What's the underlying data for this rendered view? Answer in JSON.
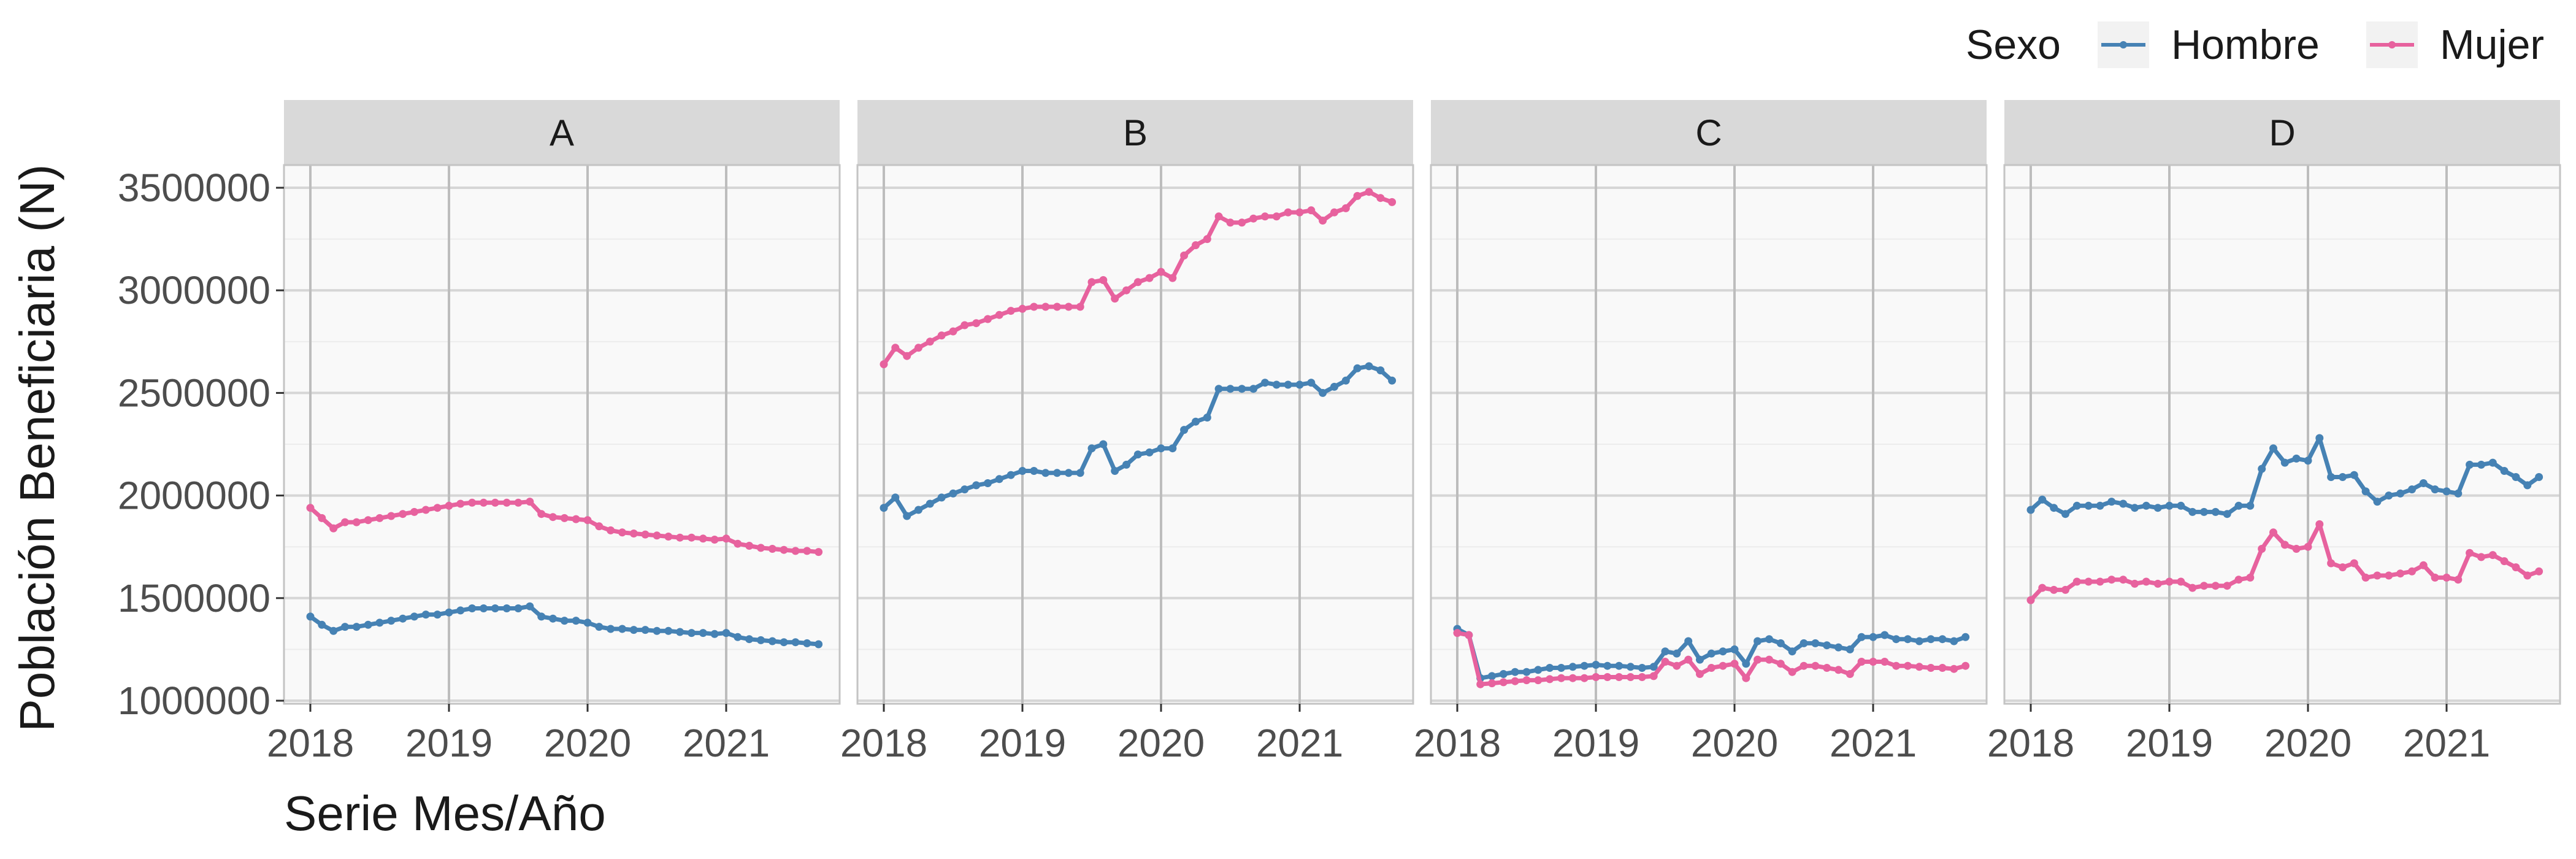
{
  "chart_data": {
    "type": "line",
    "title": "",
    "xlabel": "Serie Mes/Año",
    "ylabel": "Población Beneficiaria (N)",
    "ylim": [
      1000000,
      3500000
    ],
    "yticks": [
      1000000,
      1500000,
      2000000,
      2500000,
      3000000,
      3500000
    ],
    "ytick_labels": [
      "1000000",
      "1500000",
      "2000000",
      "2500000",
      "3000000",
      "3500000"
    ],
    "xlim": [
      2017.9,
      2021.75
    ],
    "xticks": [
      2018,
      2019,
      2020,
      2021
    ],
    "xtick_labels": [
      "2018",
      "2019",
      "2020",
      "2021"
    ],
    "grid": true,
    "facet_variable": "",
    "legend": {
      "title": "Sexo",
      "position": "top-right",
      "entries": [
        {
          "name": "Hombre",
          "color": "#4682B4"
        },
        {
          "name": "Mujer",
          "color": "#E7629E"
        }
      ]
    },
    "x_start": 2018.0,
    "x_step": 0.08333,
    "panels": [
      {
        "label": "A",
        "series": [
          {
            "name": "Hombre",
            "values": [
              1410000,
              1370000,
              1340000,
              1360000,
              1360000,
              1370000,
              1380000,
              1390000,
              1400000,
              1410000,
              1420000,
              1420000,
              1430000,
              1440000,
              1450000,
              1450000,
              1450000,
              1450000,
              1450000,
              1460000,
              1410000,
              1400000,
              1390000,
              1390000,
              1380000,
              1360000,
              1350000,
              1350000,
              1345000,
              1345000,
              1340000,
              1340000,
              1335000,
              1330000,
              1330000,
              1325000,
              1330000,
              1310000,
              1300000,
              1295000,
              1290000,
              1285000,
              1285000,
              1280000,
              1275000
            ]
          },
          {
            "name": "Mujer",
            "values": [
              1940000,
              1890000,
              1840000,
              1870000,
              1870000,
              1880000,
              1890000,
              1900000,
              1910000,
              1920000,
              1930000,
              1940000,
              1950000,
              1960000,
              1965000,
              1965000,
              1965000,
              1965000,
              1965000,
              1970000,
              1910000,
              1895000,
              1890000,
              1885000,
              1880000,
              1850000,
              1830000,
              1820000,
              1815000,
              1810000,
              1805000,
              1800000,
              1795000,
              1795000,
              1790000,
              1785000,
              1790000,
              1765000,
              1755000,
              1745000,
              1740000,
              1735000,
              1730000,
              1730000,
              1725000
            ]
          }
        ]
      },
      {
        "label": "B",
        "series": [
          {
            "name": "Hombre",
            "values": [
              1940000,
              1990000,
              1900000,
              1930000,
              1960000,
              1990000,
              2010000,
              2030000,
              2050000,
              2060000,
              2080000,
              2100000,
              2120000,
              2120000,
              2110000,
              2110000,
              2110000,
              2110000,
              2230000,
              2250000,
              2120000,
              2150000,
              2200000,
              2210000,
              2230000,
              2230000,
              2320000,
              2360000,
              2380000,
              2520000,
              2520000,
              2520000,
              2520000,
              2550000,
              2540000,
              2540000,
              2540000,
              2550000,
              2500000,
              2530000,
              2560000,
              2620000,
              2630000,
              2610000,
              2560000
            ]
          },
          {
            "name": "Mujer",
            "values": [
              2640000,
              2720000,
              2680000,
              2720000,
              2750000,
              2780000,
              2800000,
              2830000,
              2840000,
              2860000,
              2880000,
              2900000,
              2910000,
              2920000,
              2920000,
              2920000,
              2920000,
              2920000,
              3040000,
              3050000,
              2960000,
              3000000,
              3040000,
              3060000,
              3090000,
              3060000,
              3170000,
              3220000,
              3250000,
              3360000,
              3330000,
              3330000,
              3350000,
              3360000,
              3360000,
              3380000,
              3380000,
              3390000,
              3340000,
              3380000,
              3400000,
              3460000,
              3480000,
              3450000,
              3430000
            ]
          }
        ]
      },
      {
        "label": "C",
        "series": [
          {
            "name": "Hombre",
            "values": [
              1350000,
              1320000,
              1110000,
              1120000,
              1130000,
              1140000,
              1140000,
              1150000,
              1160000,
              1160000,
              1165000,
              1170000,
              1175000,
              1170000,
              1170000,
              1165000,
              1160000,
              1165000,
              1240000,
              1230000,
              1290000,
              1200000,
              1230000,
              1240000,
              1250000,
              1180000,
              1290000,
              1300000,
              1280000,
              1240000,
              1280000,
              1280000,
              1270000,
              1260000,
              1250000,
              1310000,
              1310000,
              1320000,
              1300000,
              1300000,
              1290000,
              1300000,
              1300000,
              1290000,
              1310000
            ]
          },
          {
            "name": "Mujer",
            "values": [
              1330000,
              1320000,
              1080000,
              1085000,
              1090000,
              1095000,
              1100000,
              1100000,
              1105000,
              1110000,
              1110000,
              1110000,
              1115000,
              1115000,
              1115000,
              1115000,
              1115000,
              1120000,
              1190000,
              1170000,
              1200000,
              1130000,
              1160000,
              1170000,
              1180000,
              1110000,
              1200000,
              1200000,
              1180000,
              1140000,
              1170000,
              1170000,
              1160000,
              1150000,
              1130000,
              1190000,
              1190000,
              1190000,
              1170000,
              1170000,
              1165000,
              1160000,
              1160000,
              1155000,
              1170000
            ]
          }
        ]
      },
      {
        "label": "D",
        "series": [
          {
            "name": "Hombre",
            "values": [
              1930000,
              1980000,
              1940000,
              1910000,
              1950000,
              1950000,
              1950000,
              1970000,
              1960000,
              1940000,
              1950000,
              1940000,
              1950000,
              1950000,
              1920000,
              1920000,
              1920000,
              1910000,
              1950000,
              1950000,
              2130000,
              2230000,
              2160000,
              2180000,
              2170000,
              2280000,
              2090000,
              2090000,
              2100000,
              2020000,
              1970000,
              2000000,
              2010000,
              2030000,
              2060000,
              2030000,
              2020000,
              2010000,
              2150000,
              2150000,
              2160000,
              2120000,
              2090000,
              2050000,
              2090000
            ]
          },
          {
            "name": "Mujer",
            "values": [
              1490000,
              1550000,
              1540000,
              1540000,
              1580000,
              1580000,
              1580000,
              1590000,
              1590000,
              1570000,
              1580000,
              1570000,
              1580000,
              1580000,
              1550000,
              1560000,
              1560000,
              1560000,
              1590000,
              1600000,
              1740000,
              1820000,
              1760000,
              1740000,
              1750000,
              1860000,
              1670000,
              1650000,
              1670000,
              1600000,
              1610000,
              1610000,
              1620000,
              1630000,
              1660000,
              1600000,
              1600000,
              1590000,
              1720000,
              1700000,
              1710000,
              1680000,
              1650000,
              1610000,
              1630000
            ]
          }
        ]
      }
    ]
  }
}
